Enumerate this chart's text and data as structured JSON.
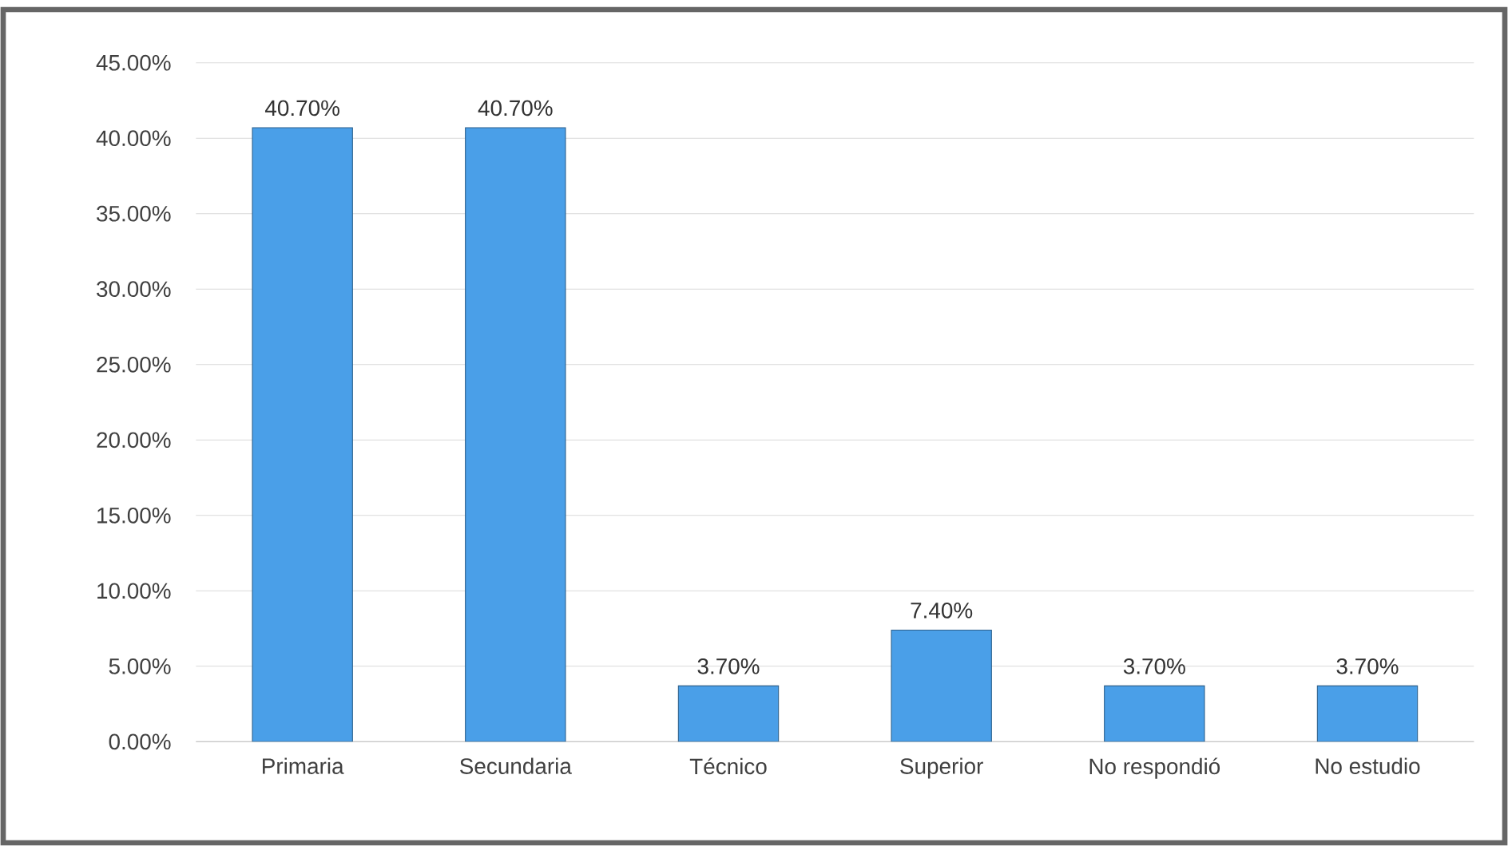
{
  "chart_data": {
    "type": "bar",
    "categories": [
      "Primaria",
      "Secundaria",
      "Técnico",
      "Superior",
      "No respondió",
      "No estudio"
    ],
    "values": [
      40.7,
      40.7,
      3.7,
      7.4,
      3.7,
      3.7
    ],
    "value_labels": [
      "40.70%",
      "40.70%",
      "3.70%",
      "7.40%",
      "3.70%",
      "3.70%"
    ],
    "color": "#4a9fe8",
    "ylim": [
      0,
      45
    ],
    "yticks": [
      {
        "value": 0,
        "label": "0.00%"
      },
      {
        "value": 5,
        "label": "5.00%"
      },
      {
        "value": 10,
        "label": "10.00%"
      },
      {
        "value": 15,
        "label": "15.00%"
      },
      {
        "value": 20,
        "label": "20.00%"
      },
      {
        "value": 25,
        "label": "25.00%"
      },
      {
        "value": 30,
        "label": "30.00%"
      },
      {
        "value": 35,
        "label": "35.00%"
      },
      {
        "value": 40,
        "label": "40.00%"
      },
      {
        "value": 45,
        "label": "45.00%"
      }
    ],
    "grid": "y"
  }
}
